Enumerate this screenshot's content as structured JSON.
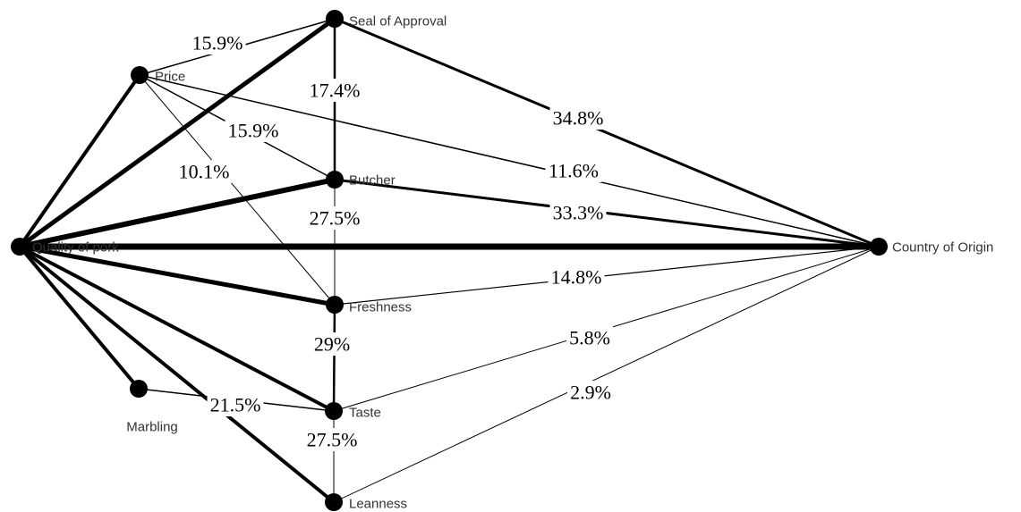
{
  "nodes": [
    {
      "id": "seal",
      "label": "Seal of Approval"
    },
    {
      "id": "price",
      "label": "Price"
    },
    {
      "id": "butcher",
      "label": "Butcher"
    },
    {
      "id": "quality",
      "label": "Quality of pork"
    },
    {
      "id": "origin",
      "label": "Country of Origin"
    },
    {
      "id": "freshness",
      "label": "Freshness"
    },
    {
      "id": "marbling",
      "label": "Marbling"
    },
    {
      "id": "taste",
      "label": "Taste"
    },
    {
      "id": "leanness",
      "label": "Leanness"
    }
  ],
  "edges": [
    {
      "from": "quality",
      "to": "origin",
      "weight": 7
    },
    {
      "from": "quality",
      "to": "butcher",
      "weight": 6
    },
    {
      "from": "quality",
      "to": "seal",
      "weight": 5
    },
    {
      "from": "quality",
      "to": "price",
      "weight": 4
    },
    {
      "from": "quality",
      "to": "freshness",
      "weight": 5
    },
    {
      "from": "quality",
      "to": "taste",
      "weight": 4
    },
    {
      "from": "quality",
      "to": "marbling",
      "weight": 4
    },
    {
      "from": "quality",
      "to": "leanness",
      "weight": 4
    },
    {
      "from": "seal",
      "to": "origin",
      "weight": 3
    },
    {
      "from": "butcher",
      "to": "origin",
      "weight": 3
    },
    {
      "from": "price",
      "to": "origin",
      "weight": 1.5
    },
    {
      "from": "freshness",
      "to": "origin",
      "weight": 1.2
    },
    {
      "from": "taste",
      "to": "origin",
      "weight": 1
    },
    {
      "from": "leanness",
      "to": "origin",
      "weight": 1
    },
    {
      "from": "seal",
      "to": "butcher",
      "weight": 2.5
    },
    {
      "from": "butcher",
      "to": "freshness",
      "weight": 1
    },
    {
      "from": "freshness",
      "to": "taste",
      "weight": 2.5
    },
    {
      "from": "taste",
      "to": "leanness",
      "weight": 1
    },
    {
      "from": "price",
      "to": "freshness",
      "weight": 1
    },
    {
      "from": "price",
      "to": "butcher",
      "weight": 1.5
    },
    {
      "from": "price",
      "to": "seal",
      "weight": 1.5
    },
    {
      "from": "marbling",
      "to": "taste",
      "weight": 1.5
    }
  ],
  "percentages": [
    {
      "label": "15.9%",
      "edge": "price-seal"
    },
    {
      "label": "17.4%",
      "edge": "seal-butcher"
    },
    {
      "label": "15.9%",
      "edge": "price-butcher"
    },
    {
      "label": "10.1%",
      "edge": "price-freshness"
    },
    {
      "label": "34.8%",
      "edge": "seal-origin"
    },
    {
      "label": "11.6%",
      "edge": "price-origin"
    },
    {
      "label": "33.3%",
      "edge": "butcher-origin"
    },
    {
      "label": "27.5%",
      "edge": "butcher-freshness"
    },
    {
      "label": "14.8%",
      "edge": "freshness-origin"
    },
    {
      "label": "29%",
      "edge": "freshness-taste"
    },
    {
      "label": "5.8%",
      "edge": "taste-origin"
    },
    {
      "label": "21.5%",
      "edge": "marbling-taste"
    },
    {
      "label": "2.9%",
      "edge": "leanness-origin"
    },
    {
      "label": "27.5%",
      "edge": "taste-leanness"
    }
  ]
}
